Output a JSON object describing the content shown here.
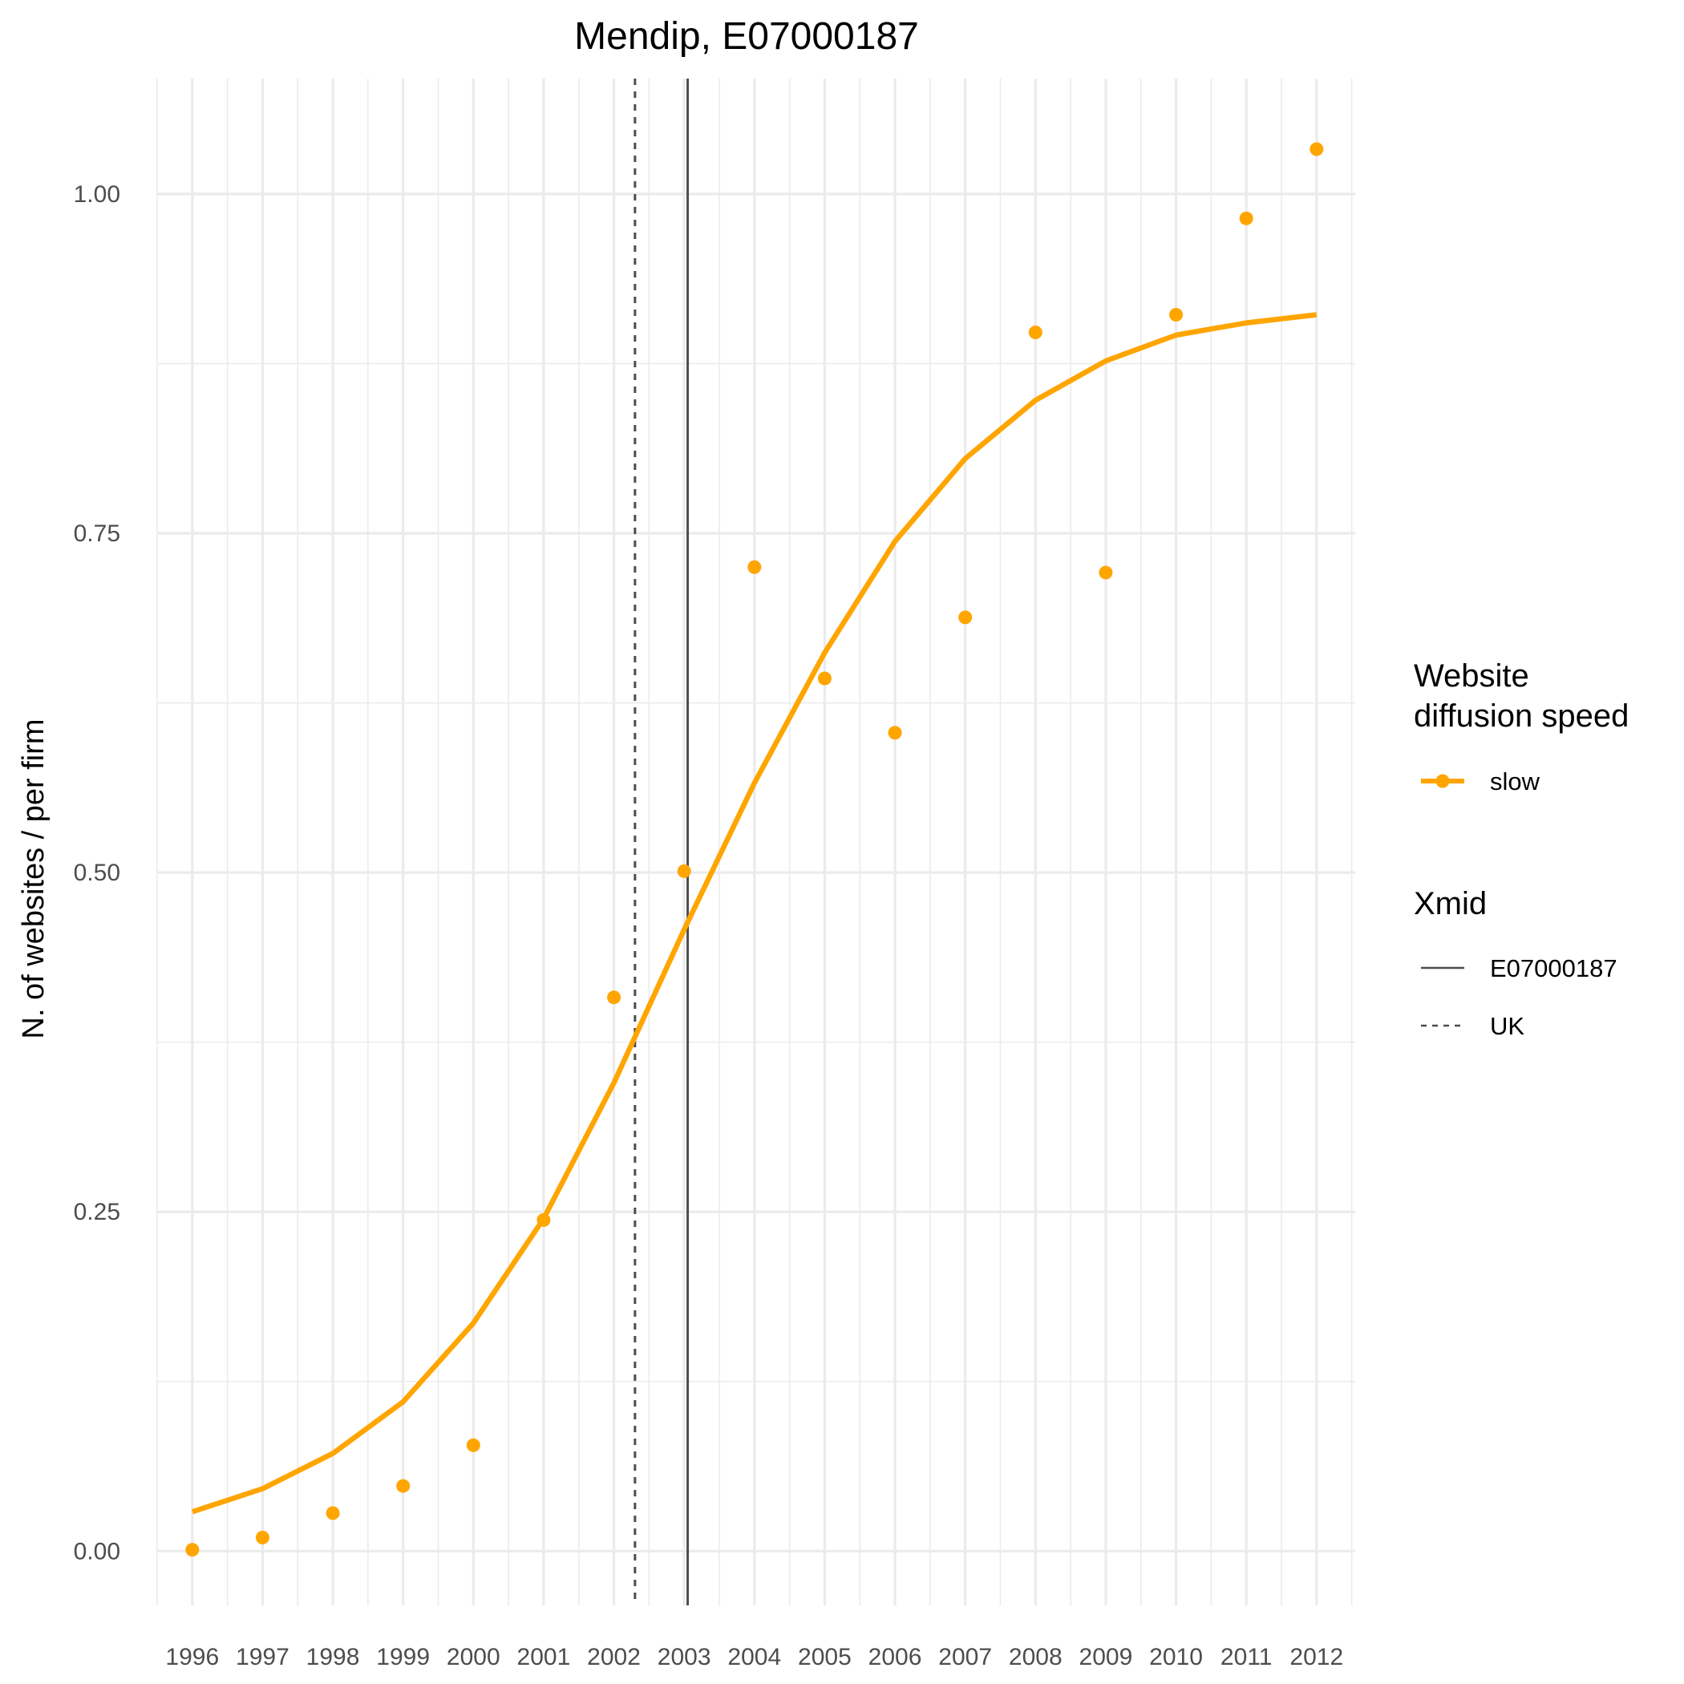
{
  "chart_data": {
    "type": "line",
    "title": "Mendip, E07000187",
    "ylabel": "N. of websites / per firm",
    "xlabel": "",
    "x": [
      1996,
      1997,
      1998,
      1999,
      2000,
      2001,
      2002,
      2003,
      2004,
      2005,
      2006,
      2007,
      2008,
      2009,
      2010,
      2011,
      2012
    ],
    "x_tick_labels": [
      "1996",
      "1997",
      "1998",
      "1999",
      "2000",
      "2001",
      "2002",
      "2003",
      "2004",
      "2005",
      "2006",
      "2007",
      "2008",
      "2009",
      "2010",
      "2011",
      "2012"
    ],
    "xlim": [
      1995.5,
      2012.55
    ],
    "y_ticks": [
      0,
      0.25,
      0.5,
      0.75,
      1.0
    ],
    "y_tick_labels": [
      "0.00",
      "0.25",
      "0.50",
      "0.75",
      "1.00"
    ],
    "ylim": [
      -0.04,
      1.085
    ],
    "grid": true,
    "series": [
      {
        "name": "slow",
        "color": "#FFA500",
        "points": [
          0.001,
          0.01,
          0.028,
          0.048,
          0.078,
          0.244,
          0.408,
          0.501,
          0.725,
          0.643,
          0.603,
          0.688,
          0.898,
          0.721,
          0.911,
          0.982,
          1.033
        ],
        "fitted": [
          0.029,
          0.046,
          0.072,
          0.11,
          0.168,
          0.245,
          0.345,
          0.458,
          0.566,
          0.662,
          0.744,
          0.805,
          0.848,
          0.877,
          0.896,
          0.905,
          0.911
        ]
      }
    ],
    "vlines": [
      {
        "name": "E07000187",
        "x": 2003.05,
        "linetype": "solid",
        "color": "#4d4d4d"
      },
      {
        "name": "UK",
        "x": 2002.3,
        "linetype": "dashed",
        "color": "#4d4d4d"
      }
    ],
    "legend": {
      "placement": "right",
      "speed_title_line1": "Website",
      "speed_title_line2": "diffusion speed",
      "speed_label": "slow",
      "xmid_title": "Xmid",
      "xmid_labels": [
        "E07000187",
        "UK"
      ]
    }
  }
}
